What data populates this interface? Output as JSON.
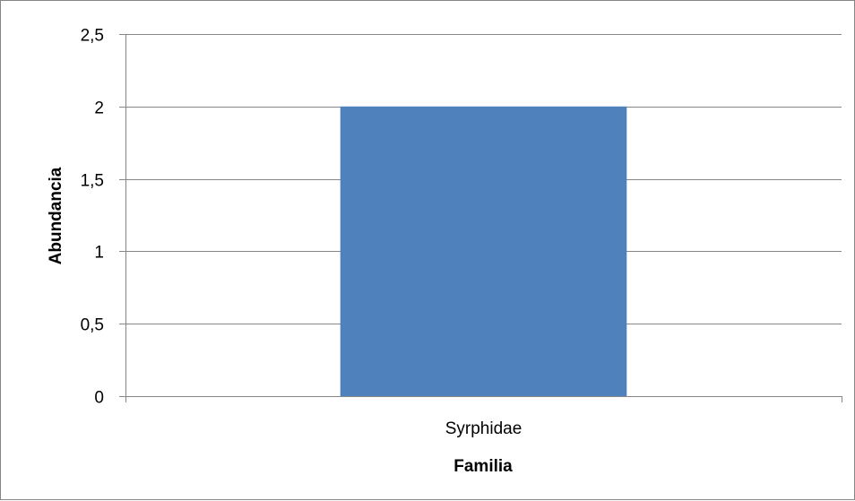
{
  "chart_data": {
    "type": "bar",
    "categories": [
      "Syrphidae"
    ],
    "values": [
      2
    ],
    "xlabel": "Familia",
    "ylabel": "Abundancia",
    "ylim": [
      0,
      2.5
    ],
    "ytick_step": 0.5,
    "ytick_labels": [
      "0",
      "0,5",
      "1",
      "1,5",
      "2",
      "2,5"
    ],
    "grid": true,
    "legend": "none",
    "colors": {
      "bar": "#4F81BD",
      "grid": "#868686",
      "axis": "#868686"
    }
  }
}
